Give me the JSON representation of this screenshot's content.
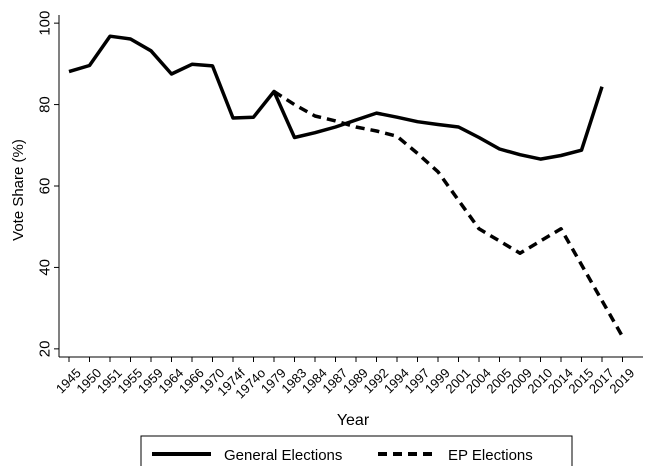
{
  "chart_data": {
    "type": "line",
    "xlabel": "Year",
    "ylabel": "Vote Share (%)",
    "ylim": [
      18,
      102
    ],
    "yticks": [
      20,
      40,
      60,
      80,
      100
    ],
    "categories": [
      "1945",
      "1950",
      "1951",
      "1955",
      "1959",
      "1964",
      "1966",
      "1970",
      "1974f",
      "1974o",
      "1979",
      "1983",
      "1984",
      "1987",
      "1989",
      "1992",
      "1994",
      "1997",
      "1999",
      "2001",
      "2004",
      "2005",
      "2009",
      "2010",
      "2014",
      "2015",
      "2017",
      "2019"
    ],
    "grid": false,
    "legend": "bottom",
    "series": [
      {
        "name": "General Elections",
        "style": "solid",
        "color": "#000000",
        "values": [
          88.1,
          89.6,
          96.8,
          96.1,
          93.2,
          87.5,
          89.9,
          89.5,
          76.7,
          76.9,
          83.2,
          71.9,
          73.1,
          74.5,
          76.2,
          77.9,
          76.9,
          75.8,
          75.1,
          74.5,
          71.9,
          69.1,
          67.7,
          66.6,
          67.5,
          68.8,
          84.4,
          null
        ]
      },
      {
        "name": "EP Elections",
        "style": "dashed",
        "color": "#000000",
        "values": [
          null,
          null,
          null,
          null,
          null,
          null,
          null,
          null,
          null,
          null,
          83.2,
          80.0,
          77.2,
          76.0,
          74.5,
          73.5,
          72.2,
          68.0,
          63.5,
          56.5,
          49.5,
          46.5,
          43.5,
          46.5,
          49.5,
          null,
          null,
          23.0
        ]
      }
    ]
  }
}
